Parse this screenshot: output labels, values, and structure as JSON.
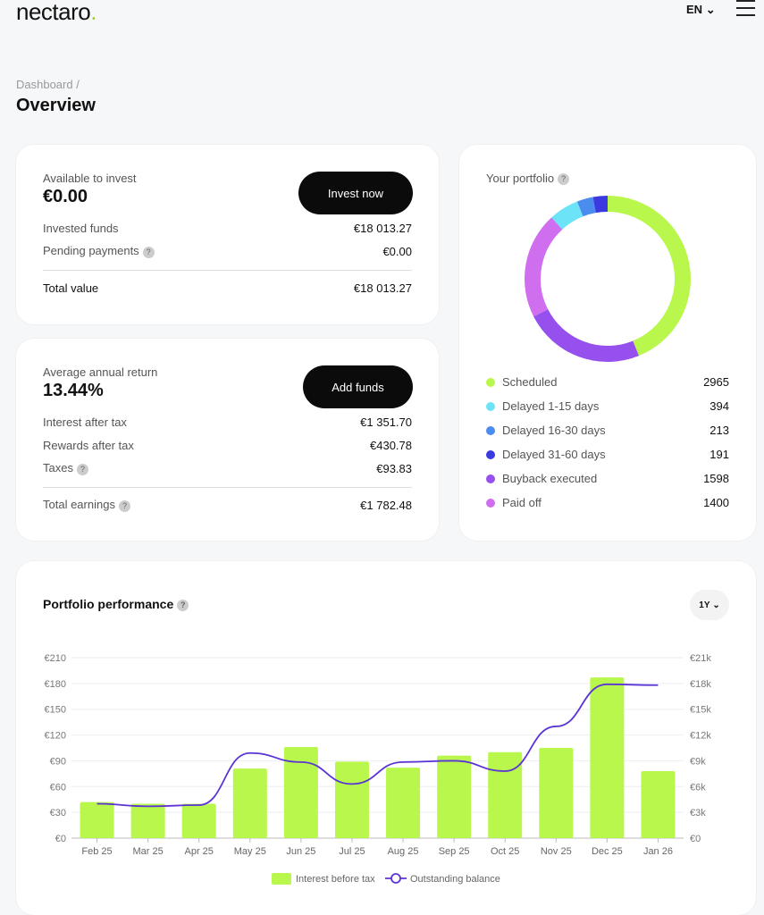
{
  "header": {
    "logo": "nectaro",
    "lang": "EN",
    "menu_icon": "hamburger-icon"
  },
  "breadcrumb": "Dashboard /",
  "title": "Overview",
  "invest": {
    "label": "Available to invest",
    "value": "€0.00",
    "button": "Invest now",
    "rows": [
      {
        "label": "Invested funds",
        "value": "€18 013.27"
      },
      {
        "label": "Pending payments",
        "value": "€0.00",
        "help": true
      }
    ],
    "total": {
      "label": "Total value",
      "value": "€18 013.27"
    }
  },
  "returns": {
    "label": "Average annual return",
    "value": "13.44%",
    "button": "Add funds",
    "rows": [
      {
        "label": "Interest after tax",
        "value": "€1 351.70"
      },
      {
        "label": "Rewards after tax",
        "value": "€430.78"
      },
      {
        "label": "Taxes",
        "value": "€93.83",
        "help": true
      }
    ],
    "total": {
      "label": "Total earnings",
      "value": "€1 782.48"
    }
  },
  "portfolio": {
    "title": "Your portfolio",
    "items": [
      {
        "label": "Scheduled",
        "value": 2965,
        "color": "#baf74c"
      },
      {
        "label": "Delayed 1-15 days",
        "value": 394,
        "color": "#6de3f7"
      },
      {
        "label": "Delayed 16-30 days",
        "value": 213,
        "color": "#4b8cef"
      },
      {
        "label": "Delayed 31-60 days",
        "value": 191,
        "color": "#3a3ae0"
      },
      {
        "label": "Buyback executed",
        "value": 1598,
        "color": "#9650ee"
      },
      {
        "label": "Paid off",
        "value": 1400,
        "color": "#d06ef0"
      }
    ],
    "ring_order": [
      0,
      4,
      5,
      1,
      2,
      3
    ]
  },
  "performance": {
    "title": "Portfolio performance",
    "period": "1Y"
  },
  "chart_data": {
    "type": "bar+line",
    "categories": [
      "Feb 25",
      "Mar 25",
      "Apr 25",
      "May 25",
      "Jun 25",
      "Jul 25",
      "Aug 25",
      "Sep 25",
      "Oct 25",
      "Nov 25",
      "Dec 25",
      "Jan 26"
    ],
    "series": [
      {
        "name": "Interest before tax",
        "type": "bar",
        "axis": "left",
        "color": "#baf74c",
        "values": [
          42,
          40,
          40,
          81,
          106,
          89,
          82,
          96,
          100,
          105,
          187,
          78
        ]
      },
      {
        "name": "Outstanding balance",
        "type": "line",
        "axis": "right",
        "color": "#5b34d6",
        "values": [
          4000,
          3700,
          3850,
          9900,
          8850,
          6300,
          8850,
          9000,
          7800,
          13000,
          17900,
          17800
        ]
      }
    ],
    "y_left": {
      "ticks": [
        "€0",
        "€30",
        "€60",
        "€90",
        "€120",
        "€150",
        "€180",
        "€210"
      ],
      "range": [
        0,
        210
      ]
    },
    "y_right": {
      "ticks": [
        "€0",
        "€3k",
        "€6k",
        "€9k",
        "€12k",
        "€15k",
        "€18k",
        "€21k"
      ],
      "range": [
        0,
        21000
      ]
    },
    "grid": true,
    "legend": "bottom"
  }
}
